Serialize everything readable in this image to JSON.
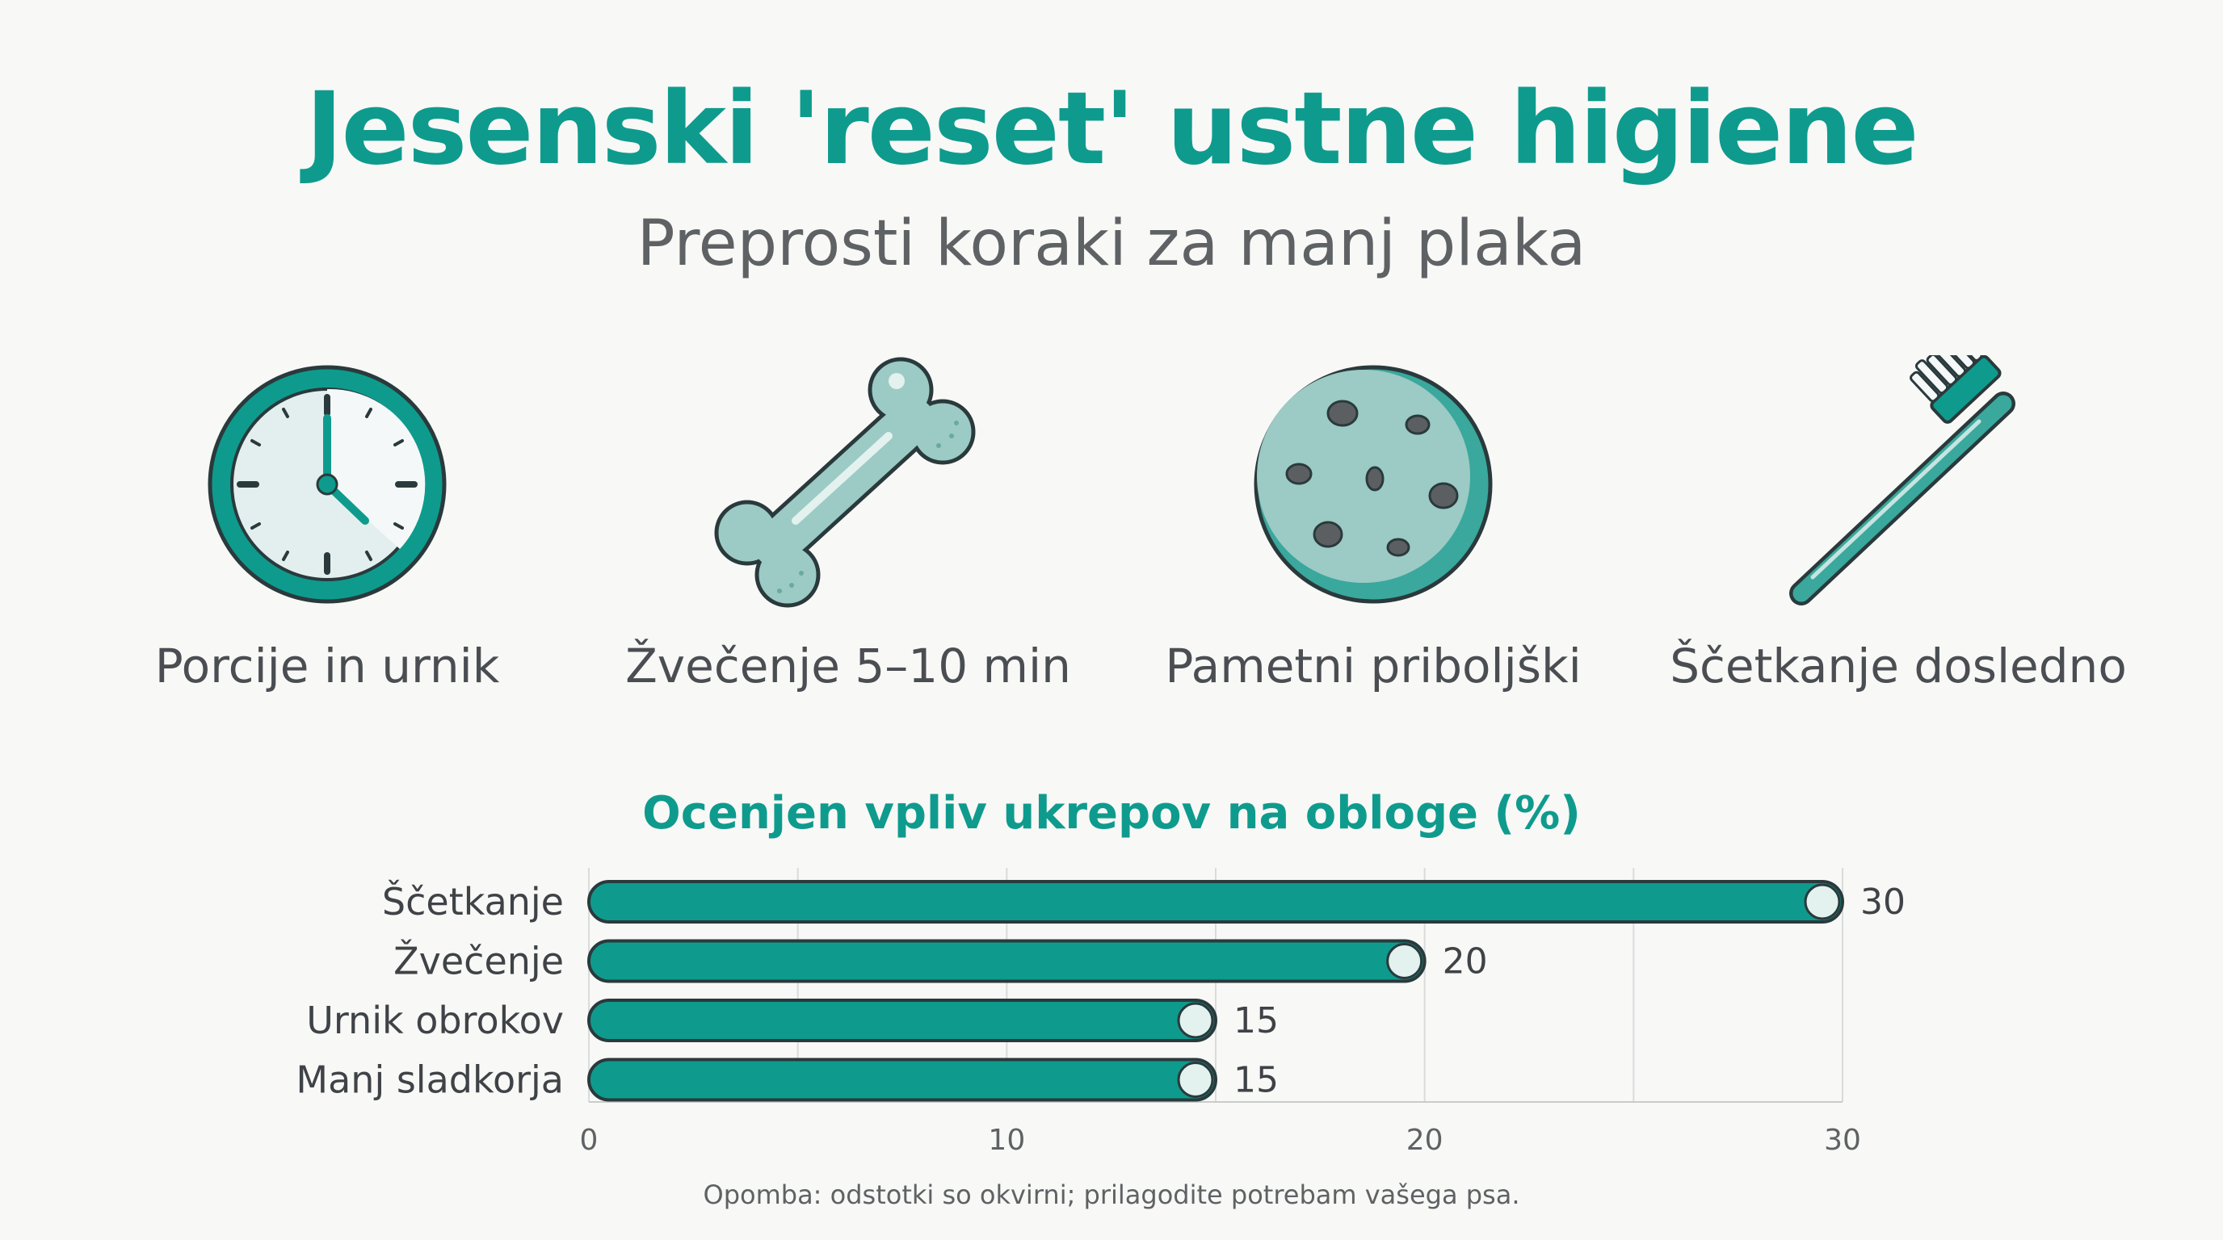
{
  "title": "Jesenski 'reset' ustne higiene",
  "subtitle": "Preprosti koraki za manj plaka",
  "steps": [
    {
      "label": "Porcije in urnik",
      "icon": "clock-icon"
    },
    {
      "label": "Žvečenje 5–10 min",
      "icon": "bone-icon"
    },
    {
      "label": "Pametni priboljški",
      "icon": "cookie-icon"
    },
    {
      "label": "Ščetkanje dosledno",
      "icon": "toothbrush-icon"
    }
  ],
  "colors": {
    "accent": "#0e9b8d",
    "bar": "#0e9b8d",
    "bar_outline": "#2a3a3c",
    "icon_light": "#9ccac5",
    "text": "#4a4e52"
  },
  "chart_data": {
    "type": "bar",
    "orientation": "horizontal",
    "title": "Ocenjen vpliv ukrepov na obloge (%)",
    "categories": [
      "Ščetkanje",
      "Žvečenje",
      "Urnik obrokov",
      "Manj sladkorja"
    ],
    "values": [
      30,
      20,
      15,
      15
    ],
    "data_labels": [
      "30",
      "20",
      "15",
      "15"
    ],
    "xlim": [
      0,
      30
    ],
    "x_ticks": [
      0,
      10,
      20,
      30
    ],
    "x_tick_labels": [
      "0",
      "10",
      "20",
      "30"
    ],
    "grid": true,
    "xlabel": "",
    "ylabel": ""
  },
  "note": "Opomba: odstotki so okvirni; prilagodite potrebam vašega psa."
}
